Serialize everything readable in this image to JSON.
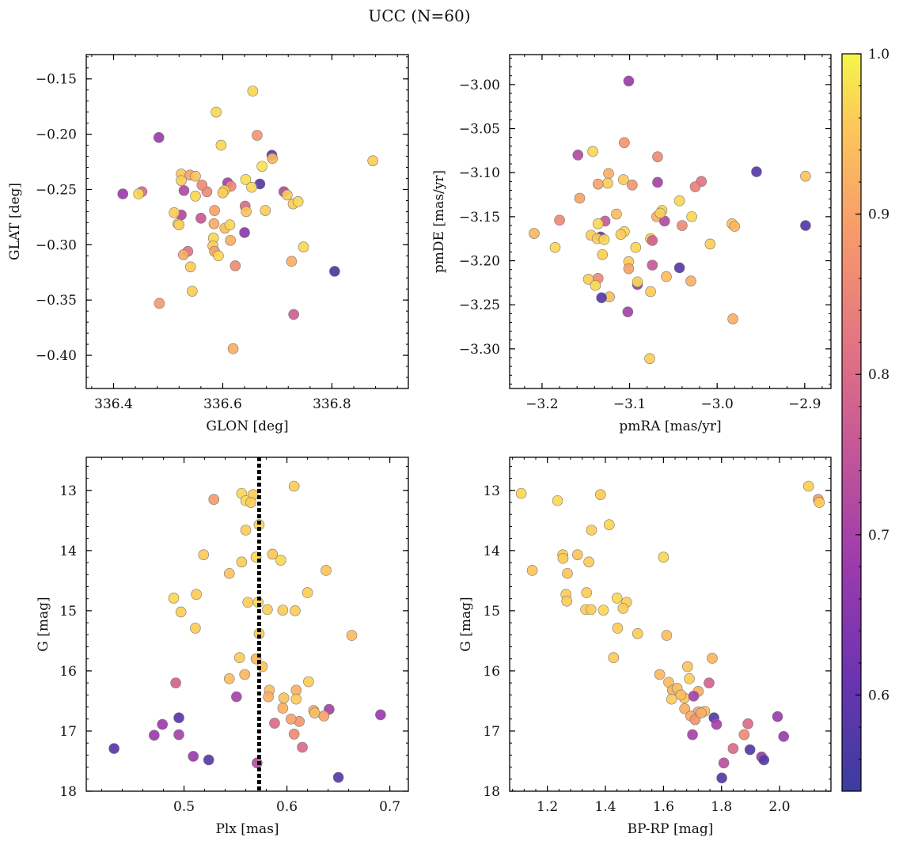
{
  "figure": {
    "title": "UCC (N=60)"
  },
  "colorbar": {
    "range": [
      0.54,
      1.0
    ],
    "ticks": [
      0.6,
      0.7,
      0.8,
      0.9,
      1.0
    ],
    "tick_labels": [
      "0.6",
      "0.7",
      "0.8",
      "0.9",
      "1.0"
    ],
    "colormap": "plasma"
  },
  "chart_data": [
    {
      "id": "gal",
      "type": "scatter",
      "xlabel": "GLON [deg]",
      "ylabel": "GLAT [deg]",
      "xlim": [
        336.35,
        336.94
      ],
      "ylim": [
        -0.43,
        -0.128
      ],
      "xticks": [
        336.4,
        336.6,
        336.8
      ],
      "xtick_labels": [
        "336.4",
        "336.6",
        "336.8"
      ],
      "yticks": [
        -0.15,
        -0.2,
        -0.25,
        -0.3,
        -0.35,
        -0.4
      ],
      "ytick_labels": [
        "−0.15",
        "−0.20",
        "−0.25",
        "−0.30",
        "−0.35",
        "−0.40"
      ],
      "points": [
        [
          336.655,
          -0.161,
          0.97
        ],
        [
          336.588,
          -0.18,
          0.97
        ],
        [
          336.483,
          -0.203,
          0.68
        ],
        [
          336.663,
          -0.201,
          0.88
        ],
        [
          336.597,
          -0.21,
          0.97
        ],
        [
          336.69,
          -0.219,
          0.58
        ],
        [
          336.875,
          -0.224,
          0.96
        ],
        [
          336.691,
          -0.222,
          0.93
        ],
        [
          336.672,
          -0.229,
          0.98
        ],
        [
          336.524,
          -0.236,
          0.95
        ],
        [
          336.54,
          -0.237,
          0.9
        ],
        [
          336.55,
          -0.238,
          0.95
        ],
        [
          336.524,
          -0.242,
          0.96
        ],
        [
          336.642,
          -0.241,
          0.98
        ],
        [
          336.609,
          -0.244,
          0.7
        ],
        [
          336.668,
          -0.245,
          0.58
        ],
        [
          336.417,
          -0.254,
          0.68
        ],
        [
          336.452,
          -0.252,
          0.8
        ],
        [
          336.446,
          -0.254,
          0.97
        ],
        [
          336.529,
          -0.251,
          0.72
        ],
        [
          336.571,
          -0.252,
          0.86
        ],
        [
          336.562,
          -0.246,
          0.86
        ],
        [
          336.615,
          -0.247,
          0.86
        ],
        [
          336.603,
          -0.251,
          0.97
        ],
        [
          336.653,
          -0.248,
          0.97
        ],
        [
          336.712,
          -0.252,
          0.72
        ],
        [
          336.718,
          -0.255,
          0.96
        ],
        [
          336.55,
          -0.256,
          0.97
        ],
        [
          336.729,
          -0.263,
          0.96
        ],
        [
          336.738,
          -0.261,
          0.97
        ],
        [
          336.56,
          -0.276,
          0.76
        ],
        [
          336.524,
          -0.273,
          0.72
        ],
        [
          336.511,
          -0.271,
          0.96
        ],
        [
          336.585,
          -0.269,
          0.9
        ],
        [
          336.641,
          -0.265,
          0.8
        ],
        [
          336.678,
          -0.269,
          0.96
        ],
        [
          336.643,
          -0.27,
          0.95
        ],
        [
          336.518,
          -0.281,
          0.96
        ],
        [
          336.584,
          -0.281,
          0.91
        ],
        [
          336.604,
          -0.285,
          0.94
        ],
        [
          336.613,
          -0.282,
          0.97
        ],
        [
          336.64,
          -0.289,
          0.66
        ],
        [
          336.583,
          -0.294,
          0.97
        ],
        [
          336.614,
          -0.296,
          0.92
        ],
        [
          336.582,
          -0.301,
          0.96
        ],
        [
          336.585,
          -0.306,
          0.9
        ],
        [
          336.748,
          -0.302,
          0.97
        ],
        [
          336.536,
          -0.306,
          0.82
        ],
        [
          336.528,
          -0.309,
          0.91
        ],
        [
          336.592,
          -0.31,
          0.97
        ],
        [
          336.726,
          -0.315,
          0.92
        ],
        [
          336.623,
          -0.319,
          0.86
        ],
        [
          336.541,
          -0.32,
          0.96
        ],
        [
          336.805,
          -0.324,
          0.56
        ],
        [
          336.544,
          -0.342,
          0.96
        ],
        [
          336.484,
          -0.353,
          0.89
        ],
        [
          336.73,
          -0.363,
          0.77
        ],
        [
          336.619,
          -0.394,
          0.92
        ],
        [
          336.52,
          -0.282,
          0.96
        ],
        [
          336.6,
          -0.253,
          0.96
        ]
      ]
    },
    {
      "id": "pm",
      "type": "scatter",
      "xlabel": "pmRA [mas/yr]",
      "ylabel": "pmDE [mas/yr]",
      "xlim": [
        -3.237,
        -2.87
      ],
      "ylim": [
        -3.345,
        -2.966
      ],
      "xticks": [
        -3.2,
        -3.1,
        -3.0,
        -2.9
      ],
      "xtick_labels": [
        "−3.2",
        "−3.1",
        "−3.0",
        "−2.9"
      ],
      "yticks": [
        -3.0,
        -3.05,
        -3.1,
        -3.15,
        -3.2,
        -3.25,
        -3.3
      ],
      "ytick_labels": [
        "−3.00",
        "−3.05",
        "−3.10",
        "−3.15",
        "−3.20",
        "−3.25",
        "−3.30"
      ],
      "points": [
        [
          -3.101,
          -2.996,
          0.68
        ],
        [
          -3.142,
          -3.076,
          0.97
        ],
        [
          -3.159,
          -3.08,
          0.72
        ],
        [
          -3.106,
          -3.066,
          0.88
        ],
        [
          -3.068,
          -3.082,
          0.86
        ],
        [
          -2.955,
          -3.099,
          0.58
        ],
        [
          -2.899,
          -3.104,
          0.95
        ],
        [
          -3.124,
          -3.101,
          0.92
        ],
        [
          -3.107,
          -3.108,
          0.96
        ],
        [
          -3.068,
          -3.111,
          0.7
        ],
        [
          -3.125,
          -3.112,
          0.96
        ],
        [
          -3.136,
          -3.113,
          0.9
        ],
        [
          -3.097,
          -3.114,
          0.88
        ],
        [
          -3.018,
          -3.11,
          0.82
        ],
        [
          -3.025,
          -3.116,
          0.84
        ],
        [
          -3.157,
          -3.129,
          0.9
        ],
        [
          -3.043,
          -3.132,
          0.97
        ],
        [
          -3.063,
          -3.143,
          0.97
        ],
        [
          -3.115,
          -3.147,
          0.94
        ],
        [
          -3.069,
          -3.15,
          0.92
        ],
        [
          -3.029,
          -3.15,
          0.97
        ],
        [
          -3.209,
          -3.169,
          0.93
        ],
        [
          -3.18,
          -3.154,
          0.86
        ],
        [
          -3.128,
          -3.155,
          0.76
        ],
        [
          -3.06,
          -3.155,
          0.72
        ],
        [
          -3.04,
          -3.16,
          0.86
        ],
        [
          -3.065,
          -3.146,
          0.96
        ],
        [
          -2.983,
          -3.158,
          0.95
        ],
        [
          -2.98,
          -3.161,
          0.93
        ],
        [
          -2.899,
          -3.16,
          0.58
        ],
        [
          -3.136,
          -3.158,
          0.97
        ],
        [
          -3.185,
          -3.185,
          0.97
        ],
        [
          -3.144,
          -3.171,
          0.96
        ],
        [
          -3.106,
          -3.167,
          0.97
        ],
        [
          -3.11,
          -3.17,
          0.96
        ],
        [
          -3.133,
          -3.173,
          0.6
        ],
        [
          -3.137,
          -3.175,
          0.96
        ],
        [
          -3.129,
          -3.176,
          0.97
        ],
        [
          -3.076,
          -3.175,
          0.97
        ],
        [
          -3.074,
          -3.177,
          0.78
        ],
        [
          -3.008,
          -3.181,
          0.96
        ],
        [
          -3.093,
          -3.185,
          0.97
        ],
        [
          -3.131,
          -3.193,
          0.96
        ],
        [
          -3.101,
          -3.201,
          0.96
        ],
        [
          -3.101,
          -3.209,
          0.9
        ],
        [
          -3.074,
          -3.205,
          0.76
        ],
        [
          -3.043,
          -3.208,
          0.58
        ],
        [
          -3.058,
          -3.218,
          0.94
        ],
        [
          -3.147,
          -3.221,
          0.96
        ],
        [
          -3.136,
          -3.22,
          0.86
        ],
        [
          -3.091,
          -3.227,
          0.68
        ],
        [
          -3.091,
          -3.224,
          0.97
        ],
        [
          -3.03,
          -3.223,
          0.92
        ],
        [
          -3.139,
          -3.228,
          0.97
        ],
        [
          -3.076,
          -3.235,
          0.96
        ],
        [
          -3.123,
          -3.241,
          0.94
        ],
        [
          -3.132,
          -3.242,
          0.58
        ],
        [
          -3.102,
          -3.258,
          0.7
        ],
        [
          -2.982,
          -3.266,
          0.92
        ],
        [
          -3.077,
          -3.311,
          0.96
        ]
      ]
    },
    {
      "id": "plx",
      "type": "scatter",
      "xlabel": "Plx [mas]",
      "ylabel": "G [mag]",
      "xlim": [
        0.405,
        0.718
      ],
      "ylim": [
        18.0,
        12.45
      ],
      "xticks": [
        0.5,
        0.6,
        0.7
      ],
      "xtick_labels": [
        "0.5",
        "0.6",
        "0.7"
      ],
      "yticks": [
        13,
        14,
        15,
        16,
        17,
        18
      ],
      "ytick_labels": [
        "13",
        "14",
        "15",
        "16",
        "17",
        "18"
      ],
      "vline": 0.573,
      "points": [
        [
          0.607,
          12.93,
          0.96
        ],
        [
          0.556,
          13.05,
          0.97
        ],
        [
          0.567,
          13.07,
          0.96
        ],
        [
          0.529,
          13.15,
          0.89
        ],
        [
          0.56,
          13.17,
          0.97
        ],
        [
          0.565,
          13.2,
          0.96
        ],
        [
          0.573,
          13.57,
          0.97
        ],
        [
          0.56,
          13.66,
          0.96
        ],
        [
          0.586,
          14.06,
          0.95
        ],
        [
          0.519,
          14.07,
          0.96
        ],
        [
          0.57,
          14.11,
          0.97
        ],
        [
          0.594,
          14.16,
          0.97
        ],
        [
          0.556,
          14.19,
          0.96
        ],
        [
          0.638,
          14.33,
          0.95
        ],
        [
          0.544,
          14.38,
          0.95
        ],
        [
          0.512,
          14.73,
          0.96
        ],
        [
          0.62,
          14.7,
          0.96
        ],
        [
          0.49,
          14.79,
          0.97
        ],
        [
          0.562,
          14.86,
          0.96
        ],
        [
          0.572,
          14.86,
          0.97
        ],
        [
          0.581,
          14.98,
          0.96
        ],
        [
          0.596,
          14.99,
          0.96
        ],
        [
          0.608,
          15.0,
          0.96
        ],
        [
          0.497,
          15.02,
          0.96
        ],
        [
          0.511,
          15.29,
          0.96
        ],
        [
          0.573,
          15.38,
          0.96
        ],
        [
          0.663,
          15.41,
          0.94
        ],
        [
          0.554,
          15.78,
          0.96
        ],
        [
          0.57,
          15.8,
          0.93
        ],
        [
          0.576,
          15.93,
          0.95
        ],
        [
          0.559,
          16.06,
          0.93
        ],
        [
          0.544,
          16.13,
          0.94
        ],
        [
          0.621,
          16.18,
          0.96
        ],
        [
          0.492,
          16.2,
          0.78
        ],
        [
          0.609,
          16.32,
          0.92
        ],
        [
          0.583,
          16.32,
          0.94
        ],
        [
          0.597,
          16.45,
          0.95
        ],
        [
          0.609,
          16.47,
          0.96
        ],
        [
          0.582,
          16.43,
          0.92
        ],
        [
          0.551,
          16.43,
          0.7
        ],
        [
          0.596,
          16.62,
          0.92
        ],
        [
          0.626,
          16.66,
          0.91
        ],
        [
          0.641,
          16.64,
          0.7
        ],
        [
          0.627,
          16.7,
          0.94
        ],
        [
          0.636,
          16.75,
          0.9
        ],
        [
          0.691,
          16.73,
          0.68
        ],
        [
          0.495,
          16.78,
          0.58
        ],
        [
          0.612,
          16.84,
          0.88
        ],
        [
          0.588,
          16.87,
          0.8
        ],
        [
          0.479,
          16.89,
          0.68
        ],
        [
          0.471,
          17.07,
          0.68
        ],
        [
          0.495,
          17.06,
          0.7
        ],
        [
          0.607,
          17.05,
          0.86
        ],
        [
          0.615,
          17.27,
          0.8
        ],
        [
          0.432,
          17.29,
          0.58
        ],
        [
          0.509,
          17.42,
          0.68
        ],
        [
          0.524,
          17.48,
          0.58
        ],
        [
          0.571,
          17.53,
          0.73
        ],
        [
          0.65,
          17.77,
          0.58
        ],
        [
          0.604,
          16.8,
          0.9
        ]
      ]
    },
    {
      "id": "cmd",
      "type": "scatter",
      "xlabel": "BP-RP [mag]",
      "ylabel": "G [mag]",
      "xlim": [
        1.07,
        2.177
      ],
      "ylim": [
        18.0,
        12.45
      ],
      "xticks": [
        1.2,
        1.4,
        1.6,
        1.8,
        2.0
      ],
      "xtick_labels": [
        "1.2",
        "1.4",
        "1.6",
        "1.8",
        "2.0"
      ],
      "yticks": [
        13,
        14,
        15,
        16,
        17,
        18
      ],
      "ytick_labels": [
        "13",
        "14",
        "15",
        "16",
        "17",
        "18"
      ],
      "points": [
        [
          2.1,
          12.93,
          0.96
        ],
        [
          2.133,
          13.15,
          0.89
        ],
        [
          2.137,
          13.2,
          0.96
        ],
        [
          1.11,
          13.05,
          0.97
        ],
        [
          1.235,
          13.17,
          0.97
        ],
        [
          1.383,
          13.07,
          0.96
        ],
        [
          1.352,
          13.66,
          0.96
        ],
        [
          1.413,
          13.57,
          0.97
        ],
        [
          1.6,
          14.11,
          0.97
        ],
        [
          1.253,
          14.07,
          0.96
        ],
        [
          1.304,
          14.07,
          0.95
        ],
        [
          1.254,
          14.13,
          0.96
        ],
        [
          1.343,
          14.19,
          0.96
        ],
        [
          1.148,
          14.33,
          0.95
        ],
        [
          1.269,
          14.38,
          0.95
        ],
        [
          1.264,
          14.73,
          0.96
        ],
        [
          1.335,
          14.7,
          0.96
        ],
        [
          1.44,
          14.79,
          0.97
        ],
        [
          1.473,
          14.86,
          0.96
        ],
        [
          1.267,
          14.84,
          0.96
        ],
        [
          1.332,
          14.98,
          0.96
        ],
        [
          1.35,
          14.98,
          0.96
        ],
        [
          1.393,
          14.99,
          0.97
        ],
        [
          1.461,
          14.96,
          0.96
        ],
        [
          1.511,
          15.38,
          0.96
        ],
        [
          1.442,
          15.29,
          0.96
        ],
        [
          1.611,
          15.41,
          0.94
        ],
        [
          1.428,
          15.78,
          0.96
        ],
        [
          1.768,
          15.79,
          0.93
        ],
        [
          1.683,
          15.93,
          0.95
        ],
        [
          1.587,
          16.06,
          0.93
        ],
        [
          1.618,
          16.19,
          0.94
        ],
        [
          1.689,
          16.13,
          0.96
        ],
        [
          1.757,
          16.2,
          0.78
        ],
        [
          1.631,
          16.32,
          0.92
        ],
        [
          1.647,
          16.29,
          0.94
        ],
        [
          1.72,
          16.34,
          0.92
        ],
        [
          1.672,
          16.45,
          0.95
        ],
        [
          1.628,
          16.47,
          0.96
        ],
        [
          1.704,
          16.42,
          0.7
        ],
        [
          1.673,
          16.63,
          0.92
        ],
        [
          1.72,
          16.68,
          0.9
        ],
        [
          1.742,
          16.67,
          0.94
        ],
        [
          1.694,
          16.75,
          0.91
        ],
        [
          1.709,
          16.81,
          0.88
        ],
        [
          1.774,
          16.78,
          0.58
        ],
        [
          1.783,
          16.89,
          0.7
        ],
        [
          1.891,
          16.88,
          0.8
        ],
        [
          1.993,
          16.76,
          0.68
        ],
        [
          1.7,
          17.06,
          0.7
        ],
        [
          1.878,
          17.06,
          0.86
        ],
        [
          2.014,
          17.09,
          0.68
        ],
        [
          1.84,
          17.29,
          0.8
        ],
        [
          1.898,
          17.31,
          0.58
        ],
        [
          1.938,
          17.43,
          0.68
        ],
        [
          1.946,
          17.48,
          0.58
        ],
        [
          1.808,
          17.53,
          0.73
        ],
        [
          1.801,
          17.78,
          0.58
        ],
        [
          1.73,
          16.7,
          0.92
        ],
        [
          1.66,
          16.4,
          0.94
        ]
      ]
    }
  ]
}
